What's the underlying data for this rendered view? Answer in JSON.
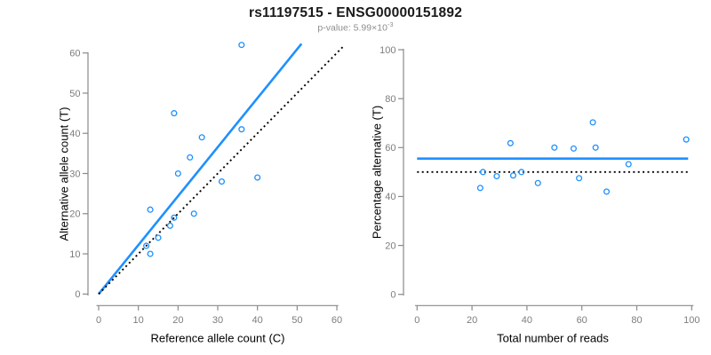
{
  "header": {
    "title": "rs11197515 - ENSG00000151892",
    "pvalue_prefix": "p-value: 5.99×10",
    "pvalue_exponent": "-3"
  },
  "colors": {
    "accent_blue": "#1E90FF",
    "axis_gray": "#8a8a8a",
    "tick_label_gray": "#7d7d7d",
    "line_black": "#000000",
    "title_black": "#1a1a1a",
    "subtitle_gray": "#8e8e8e"
  },
  "chart_data": [
    {
      "type": "scatter",
      "xlabel": "Reference allele count (C)",
      "ylabel": "Alternative allele count (T)",
      "xlim": [
        0,
        60
      ],
      "ylim": [
        0,
        60
      ],
      "xticks": [
        0,
        10,
        20,
        30,
        40,
        50,
        60
      ],
      "yticks": [
        0,
        10,
        20,
        30,
        40,
        50,
        60
      ],
      "grid": false,
      "points": [
        [
          36,
          62
        ],
        [
          19,
          45
        ],
        [
          36,
          41
        ],
        [
          26,
          39
        ],
        [
          23,
          34
        ],
        [
          20,
          30
        ],
        [
          31,
          28
        ],
        [
          40,
          29
        ],
        [
          13,
          21
        ],
        [
          24,
          20
        ],
        [
          19,
          19
        ],
        [
          18,
          17
        ],
        [
          15,
          14
        ],
        [
          12,
          12
        ],
        [
          13,
          10
        ]
      ],
      "lines": [
        {
          "name": "fitted-line",
          "style": "solid",
          "color": "#1E90FF",
          "x1": 0,
          "y1": 0,
          "x2": 51.1,
          "y2": 62.3
        },
        {
          "name": "identity-line",
          "style": "dotted",
          "color": "#000000",
          "x1": 0,
          "y1": 0,
          "x2": 61.5,
          "y2": 61.5
        }
      ]
    },
    {
      "type": "scatter",
      "xlabel": "Total number of reads",
      "ylabel": "Percentage alternative (T)",
      "xlim": [
        0,
        100
      ],
      "ylim": [
        0,
        100
      ],
      "xticks": [
        0,
        20,
        40,
        60,
        80,
        100
      ],
      "yticks": [
        0,
        20,
        40,
        60,
        80,
        100
      ],
      "grid": false,
      "points": [
        [
          98,
          63.3
        ],
        [
          64,
          70.3
        ],
        [
          77,
          53.2
        ],
        [
          65,
          60.0
        ],
        [
          57,
          59.6
        ],
        [
          50,
          60.0
        ],
        [
          59,
          47.5
        ],
        [
          69,
          42.0
        ],
        [
          34,
          61.8
        ],
        [
          44,
          45.5
        ],
        [
          38,
          50.0
        ],
        [
          35,
          48.6
        ],
        [
          29,
          48.3
        ],
        [
          24,
          50.0
        ],
        [
          23,
          43.5
        ]
      ],
      "lines": [
        {
          "name": "mean-percentage-line",
          "style": "solid",
          "color": "#1E90FF",
          "x1": 0,
          "y1": 55.5,
          "x2": 98.7,
          "y2": 55.5
        },
        {
          "name": "fifty-percent-line",
          "style": "dotted",
          "color": "#000000",
          "x1": 0,
          "y1": 50,
          "x2": 98.7,
          "y2": 50
        }
      ]
    }
  ]
}
